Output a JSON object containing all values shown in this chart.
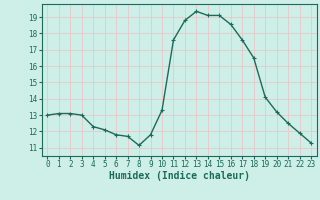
{
  "x": [
    0,
    1,
    2,
    3,
    4,
    5,
    6,
    7,
    8,
    9,
    10,
    11,
    12,
    13,
    14,
    15,
    16,
    17,
    18,
    19,
    20,
    21,
    22,
    23
  ],
  "y": [
    13.0,
    13.1,
    13.1,
    13.0,
    12.3,
    12.1,
    11.8,
    11.7,
    11.15,
    11.8,
    13.3,
    17.6,
    18.8,
    19.35,
    19.1,
    19.1,
    18.55,
    17.6,
    16.5,
    14.1,
    13.2,
    12.5,
    11.9,
    11.3
  ],
  "line_color": "#1a6b5a",
  "marker_color": "#1a6b5a",
  "bg_color": "#ceeee8",
  "grid_color_major": "#e8c8c8",
  "grid_color_minor": "#ffffff",
  "xlabel": "Humidex (Indice chaleur)",
  "xlim": [
    -0.5,
    23.5
  ],
  "ylim": [
    10.5,
    19.8
  ],
  "yticks": [
    11,
    12,
    13,
    14,
    15,
    16,
    17,
    18,
    19
  ],
  "xticks": [
    0,
    1,
    2,
    3,
    4,
    5,
    6,
    7,
    8,
    9,
    10,
    11,
    12,
    13,
    14,
    15,
    16,
    17,
    18,
    19,
    20,
    21,
    22,
    23
  ],
  "marker_size": 3,
  "line_width": 1.0,
  "tick_fontsize": 5.5,
  "xlabel_fontsize": 7
}
